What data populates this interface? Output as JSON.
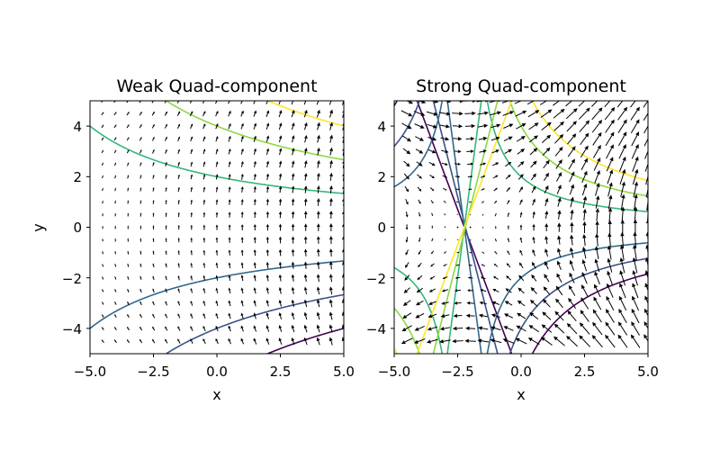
{
  "chart_data": [
    {
      "type": "contour",
      "title": "Weak Quad-component",
      "xlabel": "x",
      "ylabel": "y",
      "xlim": [
        -5,
        5
      ],
      "ylim": [
        -5,
        5
      ],
      "xticks": [
        "−5.0",
        "−2.5",
        "0.0",
        "2.5",
        "5.0"
      ],
      "yticks": [
        "−4",
        "−2",
        "0",
        "2",
        "4"
      ],
      "quad_strength": 0.01,
      "contour_levels": [
        -0.6,
        -0.4,
        -0.2,
        0.2,
        0.4,
        0.6
      ],
      "level_colors": [
        "#440154",
        "#3b528b",
        "#31688e",
        "#35b779",
        "#90d743",
        "#fde725"
      ],
      "quiver_grid": {
        "x_range": [
          -4.5,
          5.0
        ],
        "y_range": [
          -4.5,
          5.0
        ],
        "step": 0.5
      }
    },
    {
      "type": "contour",
      "title": "Strong Quad-component",
      "xlabel": "x",
      "ylabel": "",
      "xlim": [
        -5,
        5
      ],
      "ylim": [
        -5,
        5
      ],
      "xticks": [
        "−5.0",
        "−2.5",
        "0.0",
        "2.5",
        "5.0"
      ],
      "yticks": [
        "−4",
        "−2",
        "0",
        "2",
        "4"
      ],
      "quad_strength": 0.045,
      "contour_levels": [
        -0.6,
        -0.4,
        -0.2,
        0.2,
        0.4,
        0.6
      ],
      "level_colors": [
        "#440154",
        "#3b528b",
        "#31688e",
        "#35b779",
        "#90d743",
        "#fde725"
      ],
      "quiver_grid": {
        "x_range": [
          -4.5,
          5.0
        ],
        "y_range": [
          -4.5,
          5.0
        ],
        "step": 0.5
      }
    }
  ]
}
